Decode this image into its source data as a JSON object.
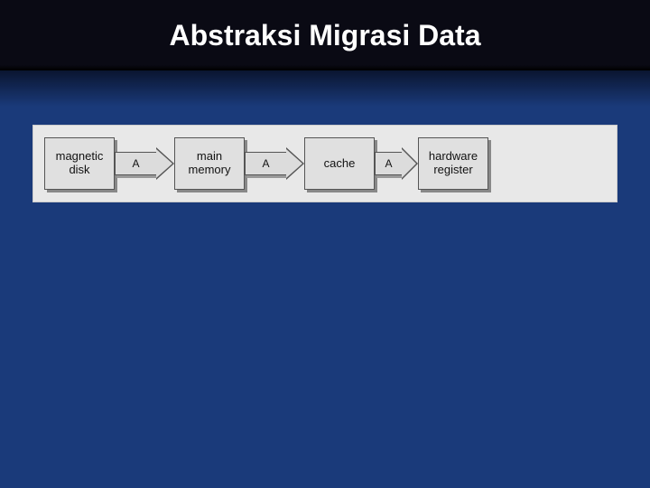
{
  "slide": {
    "title": "Abstraksi Migrasi Data",
    "title_fontsize": 32,
    "title_color": "#ffffff",
    "title_bar_bg": "#0a0a14",
    "background_color": "#1a3a7a"
  },
  "diagram": {
    "type": "flowchart",
    "background_color": "#e8e8e8",
    "box_fill": "#e0e0e0",
    "box_border": "#555555",
    "shadow_color": "#888888",
    "arrow_fill": "#dcdcdc",
    "arrow_border": "#555555",
    "label_fontsize": 13,
    "arrow_label_fontsize": 12,
    "nodes": [
      {
        "id": "n0",
        "label_line1": "magnetic",
        "label_line2": "disk",
        "width": 78,
        "height": 58
      },
      {
        "id": "n1",
        "label_line1": "main",
        "label_line2": "memory",
        "width": 78,
        "height": 58
      },
      {
        "id": "n2",
        "label_line1": "cache",
        "label_line2": "",
        "width": 78,
        "height": 58
      },
      {
        "id": "n3",
        "label_line1": "hardware",
        "label_line2": "register",
        "width": 78,
        "height": 58
      }
    ],
    "edges": [
      {
        "from": "n0",
        "to": "n1",
        "label": "A",
        "body_width": 46,
        "head_width": 20
      },
      {
        "from": "n1",
        "to": "n2",
        "label": "A",
        "body_width": 46,
        "head_width": 20
      },
      {
        "from": "n2",
        "to": "n3",
        "label": "A",
        "body_width": 30,
        "head_width": 18
      }
    ]
  }
}
